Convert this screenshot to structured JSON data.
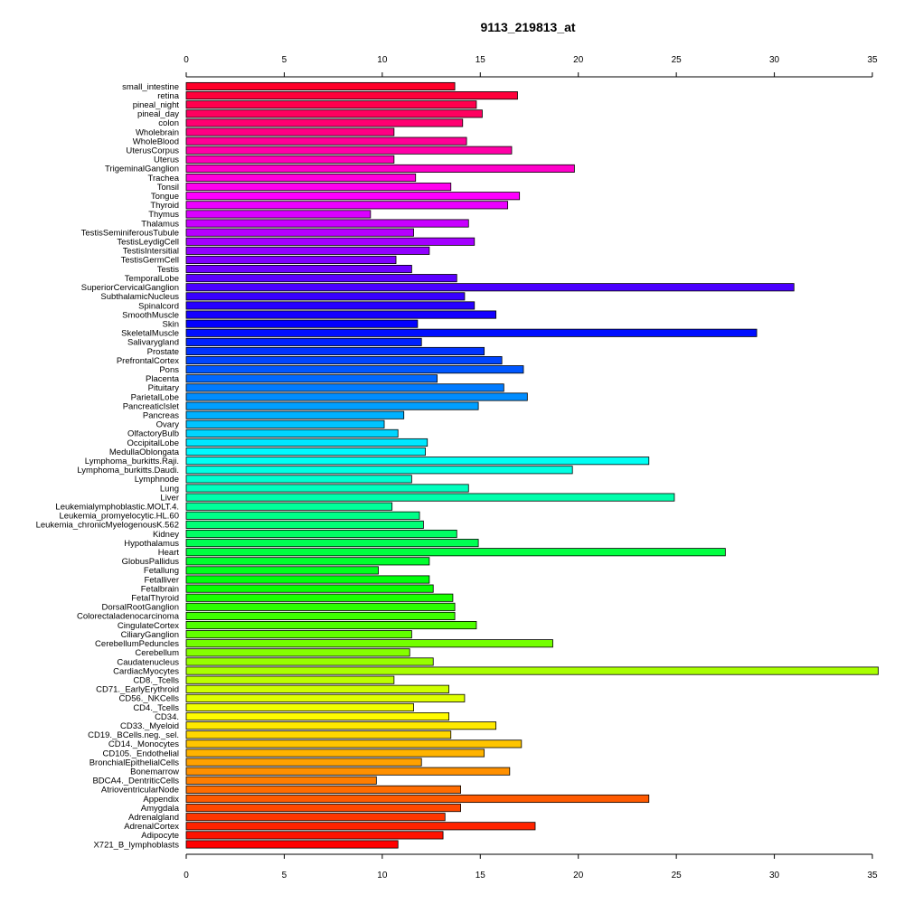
{
  "chart_data": {
    "type": "bar",
    "orientation": "horizontal",
    "title": "9113_219813_at",
    "xlabel": "",
    "ylabel": "",
    "xlim": [
      0,
      35
    ],
    "x_ticks": [
      0,
      5,
      10,
      15,
      20,
      25,
      30,
      35
    ],
    "grid": false,
    "axes": [
      "top",
      "bottom"
    ],
    "color_scheme": "rainbow",
    "categories": [
      "small_intestine",
      "retina",
      "pineal_night",
      "pineal_day",
      "colon",
      "Wholebrain",
      "WholeBlood",
      "UterusCorpus",
      "Uterus",
      "TrigeminalGanglion",
      "Trachea",
      "Tonsil",
      "Tongue",
      "Thyroid",
      "Thymus",
      "Thalamus",
      "TestisSeminiferousTubule",
      "TestisLeydigCell",
      "TestisIntersitial",
      "TestisGermCell",
      "Testis",
      "TemporalLobe",
      "SuperiorCervicalGanglion",
      "SubthalamicNucleus",
      "Spinalcord",
      "SmoothMuscle",
      "Skin",
      "SkeletalMuscle",
      "Salivarygland",
      "Prostate",
      "PrefrontalCortex",
      "Pons",
      "Placenta",
      "Pituitary",
      "ParietalLobe",
      "PancreaticIslet",
      "Pancreas",
      "Ovary",
      "OlfactoryBulb",
      "OccipitalLobe",
      "MedullaOblongata",
      "Lymphoma_burkitts.Raji.",
      "Lymphoma_burkitts.Daudi.",
      "Lymphnode",
      "Lung",
      "Liver",
      "Leukemialymphoblastic.MOLT.4.",
      "Leukemia_promyelocytic.HL.60",
      "Leukemia_chronicMyelogenousK.562",
      "Kidney",
      "Hypothalamus",
      "Heart",
      "GlobusPallidus",
      "Fetallung",
      "Fetalliver",
      "Fetalbrain",
      "FetalThyroid",
      "DorsalRootGanglion",
      "Colorectaladenocarcinoma",
      "CingulateCortex",
      "CiliaryGanglion",
      "CerebellumPeduncles",
      "Cerebellum",
      "Caudatenucleus",
      "CardiacMyocytes",
      "CD8._Tcells",
      "CD71._EarlyErythroid",
      "CD56._NKCells",
      "CD4._Tcells",
      "CD34.",
      "CD33._Myeloid",
      "CD19._BCells.neg._sel.",
      "CD14._Monocytes",
      "CD105._Endothelial",
      "BronchialEpithelialCells",
      "Bonemarrow",
      "BDCA4._DentriticCells",
      "AtrioventricularNode",
      "Appendix",
      "Amygdala",
      "Adrenalgland",
      "AdrenalCortex",
      "Adipocyte",
      "X721_B_lymphoblasts"
    ],
    "values": [
      13.7,
      16.9,
      14.8,
      15.1,
      14.1,
      10.6,
      14.3,
      16.6,
      10.6,
      19.8,
      11.7,
      13.5,
      17.0,
      16.4,
      9.4,
      14.4,
      11.6,
      14.7,
      12.4,
      10.7,
      11.5,
      13.8,
      31.0,
      14.2,
      14.7,
      15.8,
      11.8,
      29.1,
      12.0,
      15.2,
      16.1,
      17.2,
      12.8,
      16.2,
      17.4,
      14.9,
      11.1,
      10.1,
      10.8,
      12.3,
      12.2,
      23.6,
      19.7,
      11.5,
      14.4,
      24.9,
      10.5,
      11.9,
      12.1,
      13.8,
      14.9,
      27.5,
      12.4,
      9.8,
      12.4,
      12.6,
      13.6,
      13.7,
      13.7,
      14.8,
      11.5,
      18.7,
      11.4,
      12.6,
      35.3,
      10.6,
      13.4,
      14.2,
      11.6,
      13.4,
      15.8,
      13.5,
      17.1,
      15.2,
      12.0,
      16.5,
      9.7,
      14.0,
      23.6,
      14.0,
      13.2,
      17.8,
      13.1,
      10.8
    ]
  }
}
